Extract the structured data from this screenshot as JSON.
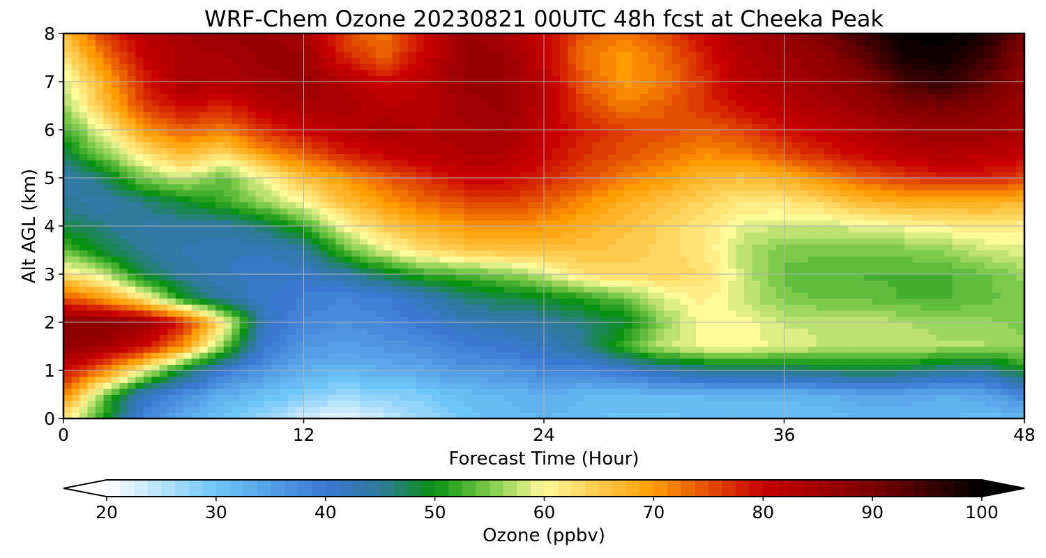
{
  "chart_data": {
    "type": "heatmap",
    "title": "WRF-Chem Ozone  20230821 00UTC 48h fcst at Cheeka Peak",
    "xlabel": "Forecast Time (Hour)",
    "ylabel": "Alt AGL (km)",
    "xlim": [
      0,
      48
    ],
    "ylim": [
      0,
      8
    ],
    "x_ticks": [
      "0",
      "12",
      "24",
      "36",
      "48"
    ],
    "y_ticks": [
      "0",
      "1",
      "2",
      "3",
      "4",
      "5",
      "6",
      "7",
      "8"
    ],
    "grid": true,
    "colorbar": {
      "label": "Ozone  (ppbv)",
      "orientation": "horizontal",
      "position": "bottom",
      "range": [
        20,
        100
      ],
      "extend": "both",
      "ticks": [
        "20",
        "30",
        "40",
        "50",
        "60",
        "70",
        "80",
        "90",
        "100"
      ],
      "colors": [
        {
          "value": 20,
          "color": "#ffffff"
        },
        {
          "value": 30,
          "color": "#6ec6f8"
        },
        {
          "value": 40,
          "color": "#3a78d2"
        },
        {
          "value": 45,
          "color": "#2e7a9a"
        },
        {
          "value": 50,
          "color": "#0a9212"
        },
        {
          "value": 55,
          "color": "#7cca4a"
        },
        {
          "value": 60,
          "color": "#fffa9a"
        },
        {
          "value": 70,
          "color": "#ff9c00"
        },
        {
          "value": 80,
          "color": "#c80000"
        },
        {
          "value": 90,
          "color": "#7a0000"
        },
        {
          "value": 100,
          "color": "#000000"
        }
      ]
    },
    "x": [
      0,
      2,
      4,
      6,
      8,
      10,
      12,
      14,
      16,
      18,
      20,
      22,
      24,
      26,
      28,
      30,
      32,
      34,
      36,
      38,
      40,
      42,
      44,
      46,
      48
    ],
    "y": [
      0,
      0.5,
      1,
      1.5,
      2,
      2.5,
      3,
      3.5,
      4,
      4.5,
      5,
      5.5,
      6,
      6.5,
      7,
      7.5,
      8
    ],
    "z": [
      [
        62,
        50,
        38,
        33,
        30,
        27,
        23,
        21,
        24,
        27,
        30,
        31,
        32,
        31,
        30,
        30,
        31,
        31,
        31,
        31,
        32,
        32,
        32,
        31,
        32
      ],
      [
        72,
        55,
        42,
        37,
        33,
        31,
        29,
        27,
        28,
        29,
        31,
        32,
        33,
        32,
        32,
        32,
        32,
        32,
        32,
        33,
        34,
        34,
        33,
        34,
        38
      ],
      [
        80,
        72,
        60,
        48,
        40,
        36,
        33,
        32,
        33,
        34,
        36,
        36,
        38,
        38,
        40,
        43,
        45,
        46,
        46,
        47,
        48,
        47,
        45,
        44,
        50
      ],
      [
        87,
        85,
        80,
        70,
        55,
        40,
        36,
        35,
        36,
        37,
        39,
        40,
        42,
        45,
        52,
        58,
        60,
        60,
        59,
        58,
        58,
        58,
        57,
        57,
        56
      ],
      [
        88,
        88,
        86,
        78,
        62,
        42,
        38,
        37,
        38,
        40,
        42,
        43,
        44,
        46,
        49,
        56,
        60,
        60,
        58,
        58,
        58,
        57,
        56,
        56,
        55
      ],
      [
        75,
        70,
        62,
        50,
        44,
        41,
        39,
        38,
        39,
        42,
        46,
        48,
        49,
        51,
        54,
        59,
        61,
        58,
        55,
        54,
        54,
        53,
        53,
        54,
        55
      ],
      [
        63,
        58,
        48,
        44,
        42,
        41,
        41,
        44,
        48,
        52,
        53,
        55,
        58,
        63,
        64,
        64,
        63,
        58,
        54,
        53,
        53,
        53,
        53,
        54,
        56
      ],
      [
        54,
        48,
        45,
        43,
        42,
        42,
        44,
        53,
        59,
        63,
        65,
        66,
        66,
        66,
        65,
        64,
        62,
        57,
        55,
        55,
        55,
        55,
        56,
        58,
        59
      ],
      [
        48,
        46,
        44,
        44,
        44,
        47,
        52,
        60,
        65,
        68,
        70,
        71,
        70,
        68,
        66,
        64,
        62,
        59,
        58,
        58,
        59,
        60,
        61,
        62,
        61
      ],
      [
        45,
        43,
        46,
        49,
        52,
        56,
        60,
        66,
        70,
        73,
        75,
        76,
        74,
        71,
        68,
        66,
        64,
        62,
        62,
        64,
        67,
        68,
        68,
        68,
        67
      ],
      [
        43,
        47,
        55,
        58,
        54,
        60,
        66,
        70,
        74,
        77,
        80,
        80,
        78,
        75,
        72,
        70,
        67,
        66,
        68,
        71,
        74,
        76,
        78,
        78,
        76
      ],
      [
        48,
        55,
        62,
        67,
        63,
        70,
        74,
        78,
        80,
        82,
        83,
        83,
        80,
        77,
        75,
        73,
        71,
        72,
        75,
        78,
        80,
        82,
        83,
        82,
        81
      ],
      [
        52,
        60,
        70,
        74,
        72,
        77,
        80,
        82,
        84,
        83,
        84,
        85,
        81,
        78,
        76,
        75,
        74,
        76,
        79,
        81,
        83,
        85,
        86,
        86,
        84
      ],
      [
        56,
        66,
        76,
        80,
        78,
        82,
        84,
        84,
        82,
        82,
        85,
        86,
        82,
        76,
        72,
        74,
        77,
        80,
        82,
        84,
        86,
        89,
        90,
        88,
        86
      ],
      [
        58,
        68,
        78,
        84,
        83,
        85,
        86,
        83,
        80,
        82,
        86,
        86,
        82,
        74,
        70,
        72,
        77,
        82,
        84,
        86,
        88,
        94,
        96,
        92,
        87
      ],
      [
        62,
        72,
        80,
        84,
        84,
        86,
        86,
        78,
        74,
        80,
        86,
        86,
        81,
        73,
        70,
        73,
        78,
        83,
        85,
        87,
        92,
        98,
        99,
        95,
        88
      ],
      [
        66,
        76,
        82,
        84,
        86,
        86,
        84,
        76,
        72,
        80,
        86,
        84,
        80,
        74,
        72,
        75,
        80,
        84,
        86,
        90,
        95,
        100,
        100,
        98,
        90
      ]
    ]
  }
}
